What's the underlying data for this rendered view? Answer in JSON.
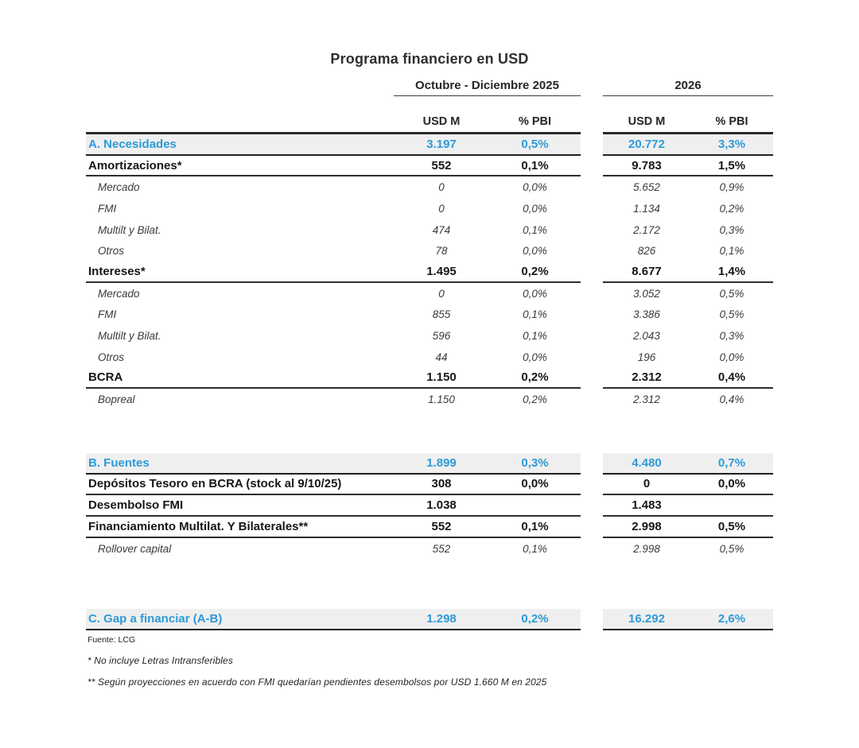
{
  "title": "Programa financiero en USD",
  "table": {
    "column_groups": [
      {
        "label": "Octubre - Diciembre 2025"
      },
      {
        "label": "2026"
      }
    ],
    "sub_headers": [
      "USD M",
      "% PBI",
      "USD M",
      "% PBI"
    ],
    "rows": [
      {
        "type": "section",
        "label": "A. Necesidades",
        "values": [
          "3.197",
          "0,5%",
          "20.772",
          "3,3%"
        ]
      },
      {
        "type": "bold",
        "label": "Amortizaciones*",
        "values": [
          "552",
          "0,1%",
          "9.783",
          "1,5%"
        ]
      },
      {
        "type": "sub",
        "label": "Mercado",
        "values": [
          "0",
          "0,0%",
          "5.652",
          "0,9%"
        ]
      },
      {
        "type": "sub",
        "label": "FMI",
        "values": [
          "0",
          "0,0%",
          "1.134",
          "0,2%"
        ]
      },
      {
        "type": "sub",
        "label": "Multilt y Bilat.",
        "values": [
          "474",
          "0,1%",
          "2.172",
          "0,3%"
        ]
      },
      {
        "type": "sub",
        "label": "Otros",
        "values": [
          "78",
          "0,0%",
          "826",
          "0,1%"
        ]
      },
      {
        "type": "bold",
        "label": "Intereses*",
        "values": [
          "1.495",
          "0,2%",
          "8.677",
          "1,4%"
        ]
      },
      {
        "type": "sub",
        "label": "Mercado",
        "values": [
          "0",
          "0,0%",
          "3.052",
          "0,5%"
        ]
      },
      {
        "type": "sub",
        "label": "FMI",
        "values": [
          "855",
          "0,1%",
          "3.386",
          "0,5%"
        ]
      },
      {
        "type": "sub",
        "label": "Multilt y Bilat.",
        "values": [
          "596",
          "0,1%",
          "2.043",
          "0,3%"
        ]
      },
      {
        "type": "sub",
        "label": "Otros",
        "values": [
          "44",
          "0,0%",
          "196",
          "0,0%"
        ]
      },
      {
        "type": "bold",
        "label": "BCRA",
        "values": [
          "1.150",
          "0,2%",
          "2.312",
          "0,4%"
        ]
      },
      {
        "type": "sub",
        "label": "Bopreal",
        "values": [
          "1.150",
          "0,2%",
          "2.312",
          "0,4%"
        ]
      },
      {
        "type": "spacer",
        "height": 54
      },
      {
        "type": "section",
        "label": "B. Fuentes",
        "values": [
          "1.899",
          "0,3%",
          "4.480",
          "0,7%"
        ]
      },
      {
        "type": "bold",
        "label": "Depósitos Tesoro en BCRA (stock al 9/10/25)",
        "values": [
          "308",
          "0,0%",
          "0",
          "0,0%"
        ]
      },
      {
        "type": "bold",
        "label": "Desembolso FMI",
        "values": [
          "1.038",
          "",
          "1.483",
          ""
        ]
      },
      {
        "type": "bold",
        "label": "Financiamiento Multilat. Y Bilaterales**",
        "values": [
          "552",
          "0,1%",
          "2.998",
          "0,5%"
        ]
      },
      {
        "type": "sub",
        "label": "Rollover capital",
        "values": [
          "552",
          "0,1%",
          "2.998",
          "0,5%"
        ]
      },
      {
        "type": "spacer",
        "height": 63
      },
      {
        "type": "section",
        "label": "C. Gap a financiar (A-B)",
        "values": [
          "1.298",
          "0,2%",
          "16.292",
          "2,6%"
        ]
      }
    ]
  },
  "footer": {
    "source": "Fuente: LCG",
    "footnote_1": "* No incluye Letras Intransferibles",
    "footnote_2": "** Según proyecciones en acuerdo con FMI quedarían pendientes desembolsos por USD 1.660 M en 2025"
  },
  "colors": {
    "accent_blue": "#2d9bd8",
    "highlight_row_bg": "#efefef",
    "border_dark": "#2b2b2b",
    "text_dark": "#1f1f1f"
  }
}
